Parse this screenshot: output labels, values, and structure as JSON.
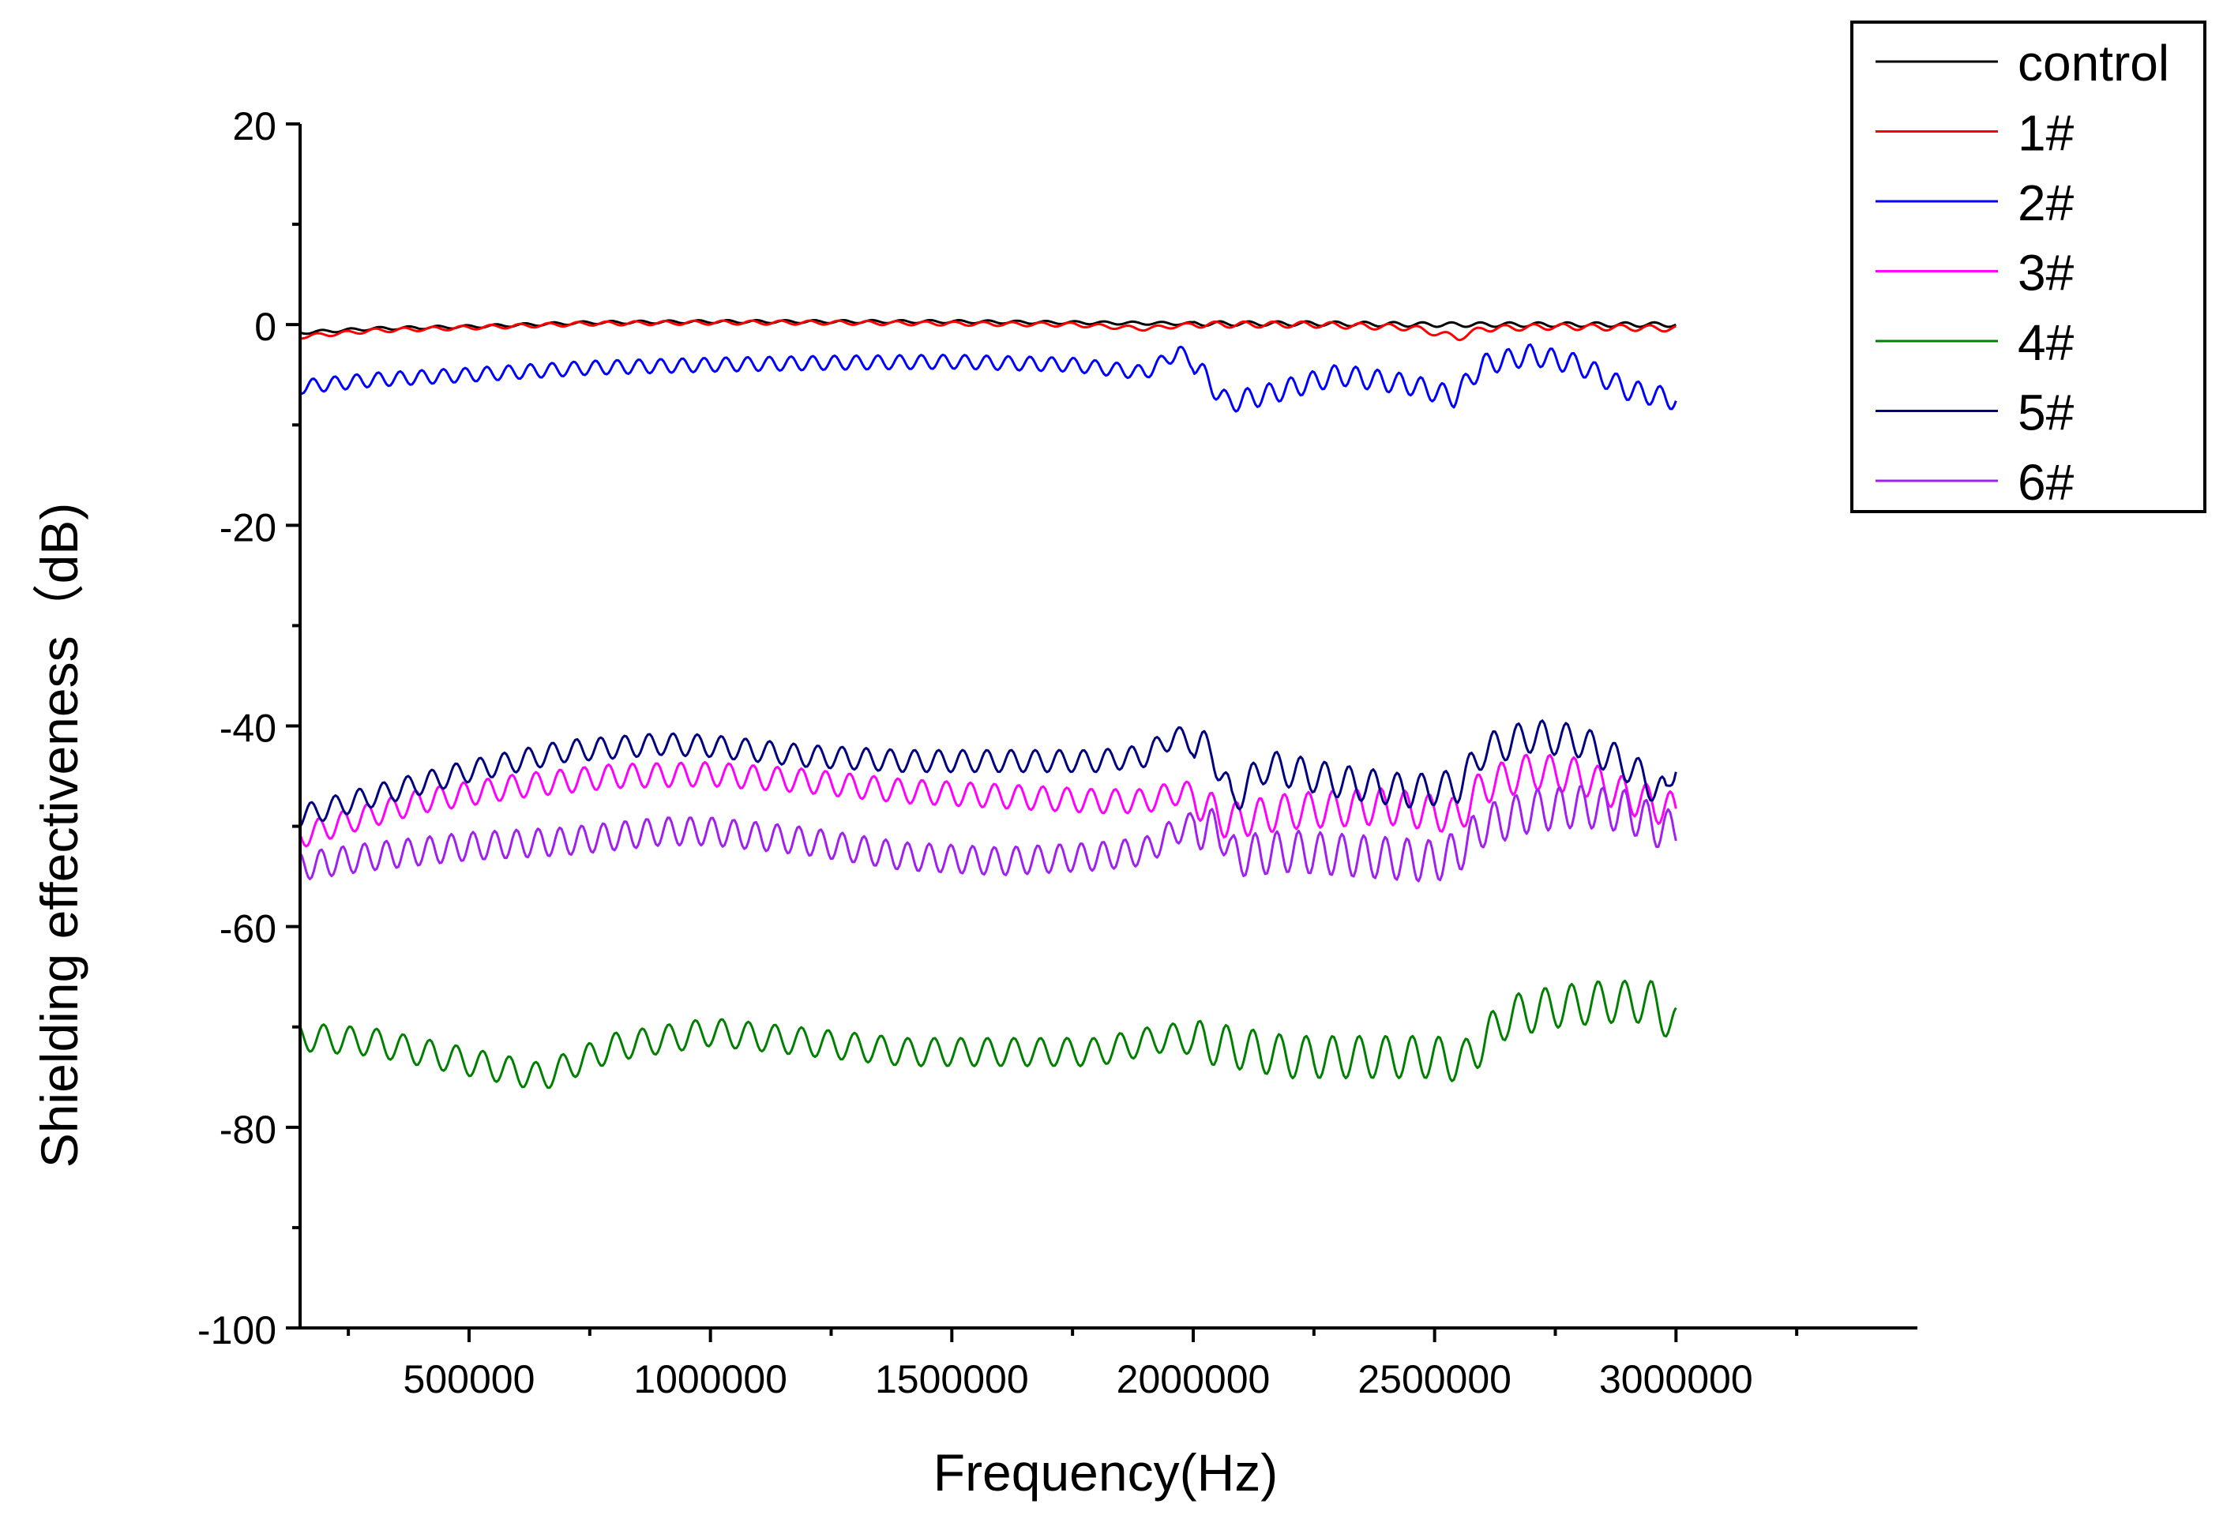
{
  "chart_data": {
    "type": "line",
    "title": "",
    "xlabel": "Frequency(Hz)",
    "ylabel": "Shielding effectiveness（dB)",
    "xlim": [
      150000,
      3500000
    ],
    "ylim": [
      -100,
      20
    ],
    "x_ticks": [
      500000,
      1000000,
      1500000,
      2000000,
      2500000,
      3000000
    ],
    "x_tick_labels": [
      "500000",
      "1000000",
      "1500000",
      "2000000",
      "2500000",
      "3000000"
    ],
    "y_ticks": [
      20,
      0,
      -20,
      -40,
      -60,
      -80,
      -100
    ],
    "y_tick_labels": [
      "20",
      "0",
      "-20",
      "-40",
      "-60",
      "-80",
      "-100"
    ],
    "grid": false,
    "legend_position": "top-right",
    "series": [
      {
        "name": "control",
        "color": "#000000",
        "x": [
          150000,
          300000,
          500000,
          750000,
          1000000,
          1250000,
          1500000,
          1750000,
          2000000,
          2250000,
          2500000,
          2750000,
          3000000
        ],
        "y": [
          -0.8,
          -0.4,
          -0.2,
          0.2,
          0.3,
          0.3,
          0.3,
          0.2,
          0.1,
          0.1,
          0.0,
          0.0,
          0.0
        ],
        "ripple": 0.15,
        "period": 60000
      },
      {
        "name": "1#",
        "color": "#ff0000",
        "x": [
          150000,
          300000,
          500000,
          750000,
          1000000,
          1250000,
          1500000,
          1750000,
          1900000,
          2000000,
          2250000,
          2450000,
          2550000,
          2600000,
          2750000,
          3000000
        ],
        "y": [
          -1.2,
          -0.6,
          -0.3,
          0.1,
          0.2,
          0.2,
          0.1,
          0.0,
          -0.4,
          0.0,
          0.0,
          -0.3,
          -1.3,
          -0.4,
          -0.2,
          -0.4
        ],
        "ripple": 0.2,
        "period": 60000
      },
      {
        "name": "2#",
        "color": "#0000ff",
        "x": [
          150000,
          300000,
          500000,
          750000,
          1000000,
          1250000,
          1500000,
          1750000,
          1900000,
          1970000,
          2000000,
          2070000,
          2150000,
          2300000,
          2450000,
          2540000,
          2600000,
          2700000,
          2800000,
          2900000,
          3000000
        ],
        "y": [
          -6.2,
          -5.5,
          -5.0,
          -4.3,
          -4.0,
          -3.8,
          -3.7,
          -4.0,
          -4.8,
          -2.7,
          -3.8,
          -7.8,
          -7.0,
          -5.0,
          -6.0,
          -7.2,
          -4.0,
          -3.0,
          -4.0,
          -6.5,
          -7.5
        ],
        "ripple": 0.7,
        "period": 45000
      },
      {
        "name": "3#",
        "color": "#ff00ff",
        "x": [
          150000,
          250000,
          400000,
          600000,
          800000,
          1000000,
          1200000,
          1400000,
          1600000,
          1800000,
          1900000,
          1980000,
          2070000,
          2200000,
          2400000,
          2550000,
          2600000,
          2700000,
          2800000,
          2900000,
          3000000
        ],
        "y": [
          -51,
          -49.5,
          -47.5,
          -46,
          -45,
          -44.8,
          -45.5,
          -46.5,
          -47,
          -47.5,
          -47.5,
          -46.5,
          -49.5,
          -48.5,
          -48,
          -49,
          -46,
          -44.5,
          -45,
          -47,
          -48.5
        ],
        "ripple": 1.2,
        "period": 50000
      },
      {
        "name": "4#",
        "color": "#008000",
        "x": [
          150000,
          300000,
          500000,
          650000,
          800000,
          1000000,
          1200000,
          1400000,
          1600000,
          1800000,
          1950000,
          2080000,
          2200000,
          2350000,
          2500000,
          2560000,
          2650000,
          2750000,
          2850000,
          2950000,
          3000000
        ],
        "y": [
          -71,
          -71.5,
          -73.5,
          -75,
          -72,
          -70.5,
          -71.5,
          -72.5,
          -72.5,
          -72.5,
          -71,
          -72,
          -73,
          -73,
          -73,
          -73.5,
          -69,
          -68,
          -67.5,
          -67.5,
          -70
        ],
        "ripple": 1.4,
        "period": 55000
      },
      {
        "name": "5#",
        "color": "#000080",
        "x": [
          150000,
          300000,
          500000,
          700000,
          900000,
          1000000,
          1200000,
          1400000,
          1600000,
          1800000,
          1900000,
          1960000,
          2040000,
          2080000,
          2150000,
          2300000,
          2450000,
          2550000,
          2600000,
          2700000,
          2800000,
          2900000,
          2980000,
          3000000
        ],
        "y": [
          -49,
          -47,
          -44.5,
          -42.5,
          -41.8,
          -42,
          -43,
          -43.5,
          -43.5,
          -43.5,
          -43,
          -41,
          -42.5,
          -47.5,
          -44,
          -45.5,
          -46.5,
          -46,
          -42.5,
          -41,
          -41.5,
          -44,
          -47,
          -43
        ],
        "ripple": 1.1,
        "period": 50000
      },
      {
        "name": "6#",
        "color": "#a020f0",
        "x": [
          150000,
          300000,
          500000,
          700000,
          900000,
          1000000,
          1200000,
          1400000,
          1600000,
          1800000,
          1900000,
          1980000,
          2060000,
          2080000,
          2200000,
          2350000,
          2500000,
          2550000,
          2600000,
          2700000,
          2800000,
          2900000,
          2980000,
          3000000
        ],
        "y": [
          -54,
          -53,
          -52,
          -51.5,
          -50.5,
          -50.5,
          -51.5,
          -53,
          -53.5,
          -53,
          -52.5,
          -50,
          -50.5,
          -53,
          -52.5,
          -53,
          -53.5,
          -52.5,
          -50,
          -48.5,
          -48,
          -48.5,
          -50.5,
          -50
        ],
        "ripple": 1.4,
        "period": 45000
      }
    ]
  }
}
